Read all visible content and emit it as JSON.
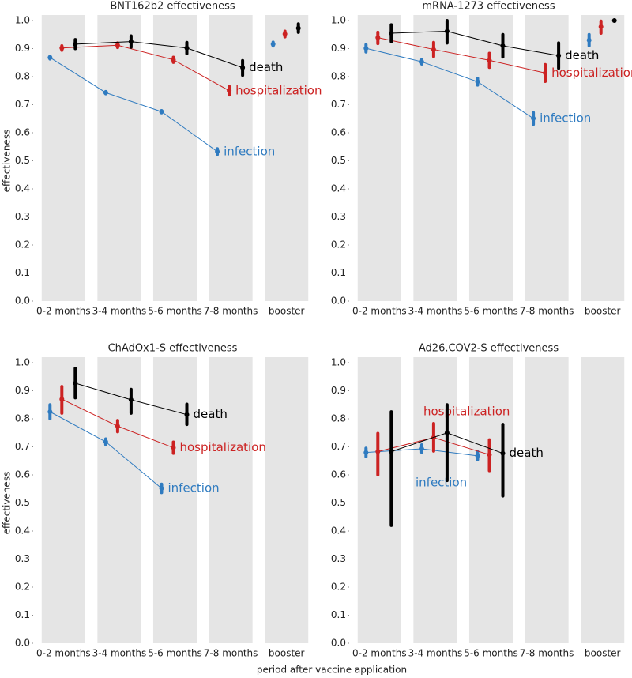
{
  "xlabel": "period after vaccine application",
  "chart_data": [
    {
      "type": "errorline",
      "title": "BNT162b2 effectiveness",
      "ylabel": "effectiveness",
      "categories": [
        "0-2 months",
        "3-4 months",
        "5-6 months",
        "7-8 months",
        "booster"
      ],
      "ylim": [
        0,
        1
      ],
      "yticks": [
        {
          "value": 0,
          "label": "0.0"
        },
        0.1,
        0.2,
        0.3,
        0.4,
        0.5,
        0.6,
        0.7,
        0.8,
        0.9,
        {
          "value": 1,
          "label": "1.0"
        }
      ],
      "series": [
        {
          "name": "infection",
          "color": "#2f7bc0",
          "values": [
            0.868,
            0.743,
            0.675,
            0.533,
            0.916
          ],
          "lower": [
            0.863,
            0.739,
            0.671,
            0.523,
            0.909
          ],
          "upper": [
            0.873,
            0.747,
            0.679,
            0.543,
            0.923
          ]
        },
        {
          "name": "hospitalization",
          "color": "#cc2222",
          "values": [
            0.902,
            0.912,
            0.86,
            0.75,
            0.952
          ],
          "lower": [
            0.894,
            0.904,
            0.851,
            0.735,
            0.942
          ],
          "upper": [
            0.91,
            0.92,
            0.869,
            0.765,
            0.962
          ]
        },
        {
          "name": "death",
          "color": "#000000",
          "values": [
            0.916,
            0.925,
            0.902,
            0.832,
            0.973
          ],
          "lower": [
            0.9,
            0.905,
            0.882,
            0.805,
            0.958
          ],
          "upper": [
            0.932,
            0.945,
            0.922,
            0.857,
            0.988
          ]
        }
      ]
    },
    {
      "type": "errorline",
      "title": "mRNA-1273 effectiveness",
      "categories": [
        "0-2 months",
        "3-4 months",
        "5-6 months",
        "7-8 months",
        "booster"
      ],
      "ylim": [
        0,
        1
      ],
      "yticks": [
        {
          "value": 0,
          "label": "0.0"
        },
        0.1,
        0.2,
        0.3,
        0.4,
        0.5,
        0.6,
        0.7,
        0.8,
        0.9,
        {
          "value": 1,
          "label": "1.0"
        }
      ],
      "series": [
        {
          "name": "infection",
          "color": "#2f7bc0",
          "values": [
            0.901,
            0.853,
            0.782,
            0.651,
            0.93
          ],
          "lower": [
            0.888,
            0.845,
            0.77,
            0.63,
            0.91
          ],
          "upper": [
            0.914,
            0.861,
            0.794,
            0.672,
            0.95
          ]
        },
        {
          "name": "hospitalization",
          "color": "#cc2222",
          "values": [
            0.939,
            0.897,
            0.858,
            0.813,
            0.978
          ],
          "lower": [
            0.918,
            0.872,
            0.833,
            0.783,
            0.955
          ],
          "upper": [
            0.958,
            0.922,
            0.883,
            0.843,
            0.998
          ]
        },
        {
          "name": "death",
          "color": "#000000",
          "values": [
            0.955,
            0.962,
            0.91,
            0.875,
            1.0
          ],
          "lower": [
            0.925,
            0.92,
            0.87,
            0.83,
            null
          ],
          "upper": [
            0.985,
            1.0,
            0.95,
            0.92,
            null
          ]
        }
      ]
    },
    {
      "type": "errorline",
      "title": "ChAdOx1-S effectiveness",
      "ylabel": "effectiveness",
      "categories": [
        "0-2 months",
        "3-4 months",
        "5-6 months",
        "7-8 months",
        "booster"
      ],
      "ylim": [
        0,
        1
      ],
      "yticks": [
        {
          "value": 0,
          "label": "0.0"
        },
        0.1,
        0.2,
        0.3,
        0.4,
        0.5,
        0.6,
        0.7,
        0.8,
        0.9,
        {
          "value": 1,
          "label": "1.0"
        }
      ],
      "series": [
        {
          "name": "infection",
          "color": "#2f7bc0",
          "values": [
            0.825,
            0.718,
            0.552,
            null,
            null
          ],
          "lower": [
            0.8,
            0.708,
            0.537,
            null,
            null
          ],
          "upper": [
            0.85,
            0.728,
            0.567,
            null,
            null
          ]
        },
        {
          "name": "hospitalization",
          "color": "#cc2222",
          "values": [
            0.87,
            0.774,
            0.697,
            null,
            null
          ],
          "lower": [
            0.82,
            0.754,
            0.677,
            null,
            null
          ],
          "upper": [
            0.915,
            0.794,
            0.717,
            null,
            null
          ]
        },
        {
          "name": "death",
          "color": "#000000",
          "values": [
            0.927,
            0.868,
            0.815,
            null,
            null
          ],
          "lower": [
            0.875,
            0.82,
            0.78,
            null,
            null
          ],
          "upper": [
            0.98,
            0.905,
            0.852,
            null,
            null
          ]
        }
      ]
    },
    {
      "type": "errorline",
      "title": "Ad26.COV2-S effectiveness",
      "categories": [
        "0-2 months",
        "3-4 months",
        "5-6 months",
        "7-8 months",
        "booster"
      ],
      "ylim": [
        0,
        1
      ],
      "yticks": [
        {
          "value": 0,
          "label": "0.0"
        },
        0.1,
        0.2,
        0.3,
        0.4,
        0.5,
        0.6,
        0.7,
        0.8,
        0.9,
        {
          "value": 1,
          "label": "1.0"
        }
      ],
      "series": [
        {
          "name": "infection",
          "color": "#2f7bc0",
          "values": [
            0.68,
            0.693,
            0.668,
            null,
            null
          ],
          "lower": [
            0.665,
            0.68,
            0.655,
            null,
            null
          ],
          "upper": [
            0.695,
            0.707,
            0.683,
            null,
            null
          ]
        },
        {
          "name": "hospitalization",
          "color": "#cc2222",
          "values": [
            0.683,
            0.733,
            0.672,
            null,
            null
          ],
          "lower": [
            0.6,
            0.685,
            0.615,
            null,
            null
          ],
          "upper": [
            0.748,
            0.783,
            0.725,
            null,
            null
          ]
        },
        {
          "name": "death",
          "color": "#000000",
          "values": [
            0.683,
            0.75,
            0.677,
            null,
            null
          ],
          "lower": [
            0.42,
            0.58,
            0.525,
            null,
            null
          ],
          "upper": [
            0.825,
            0.85,
            0.78,
            null,
            null
          ]
        }
      ]
    }
  ]
}
